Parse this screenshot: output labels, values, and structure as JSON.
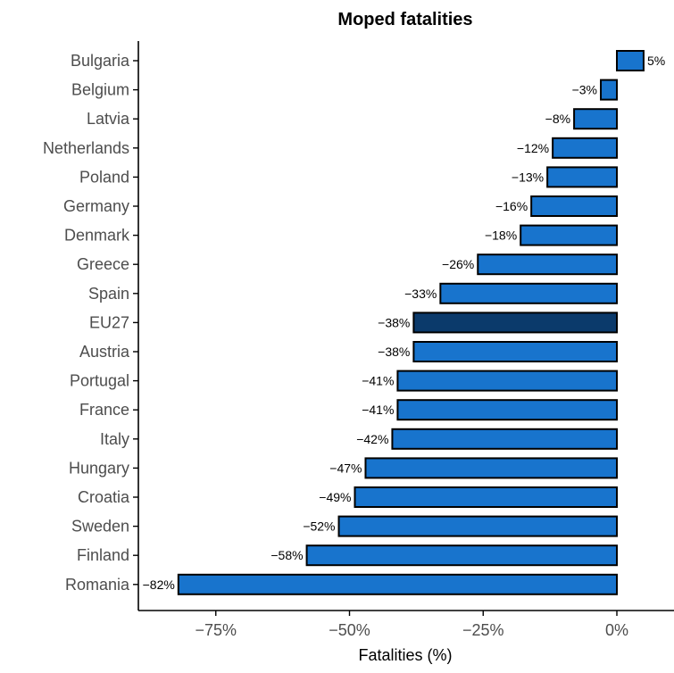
{
  "chart_data": {
    "type": "bar",
    "orientation": "horizontal",
    "title": "Moped fatalities",
    "xlabel": "Fatalities (%)",
    "ylabel": "",
    "xlim": [
      -91,
      10
    ],
    "x_ticks": [
      -75,
      -50,
      -25,
      0
    ],
    "x_tick_labels": [
      "−75%",
      "−50%",
      "−25%",
      "0%"
    ],
    "categories": [
      "Bulgaria",
      "Belgium",
      "Latvia",
      "Netherlands",
      "Poland",
      "Germany",
      "Denmark",
      "Greece",
      "Spain",
      "EU27",
      "Austria",
      "Portugal",
      "France",
      "Italy",
      "Hungary",
      "Croatia",
      "Sweden",
      "Finland",
      "Romania"
    ],
    "values": [
      5,
      -3,
      -8,
      -12,
      -13,
      -16,
      -18,
      -26,
      -33,
      -38,
      -38,
      -41,
      -41,
      -42,
      -47,
      -49,
      -52,
      -58,
      -82
    ],
    "data_labels": [
      "5%",
      "−3%",
      "−8%",
      "−12%",
      "−13%",
      "−16%",
      "−18%",
      "−26%",
      "−33%",
      "−38%",
      "−38%",
      "−41%",
      "−41%",
      "−42%",
      "−47%",
      "−49%",
      "−52%",
      "−58%",
      "−82%"
    ],
    "highlight_category": "EU27",
    "colors": {
      "bar": "#1874cd",
      "highlight": "#0b3a6b",
      "outline": "#000000"
    },
    "grid": false,
    "legend": "none"
  }
}
